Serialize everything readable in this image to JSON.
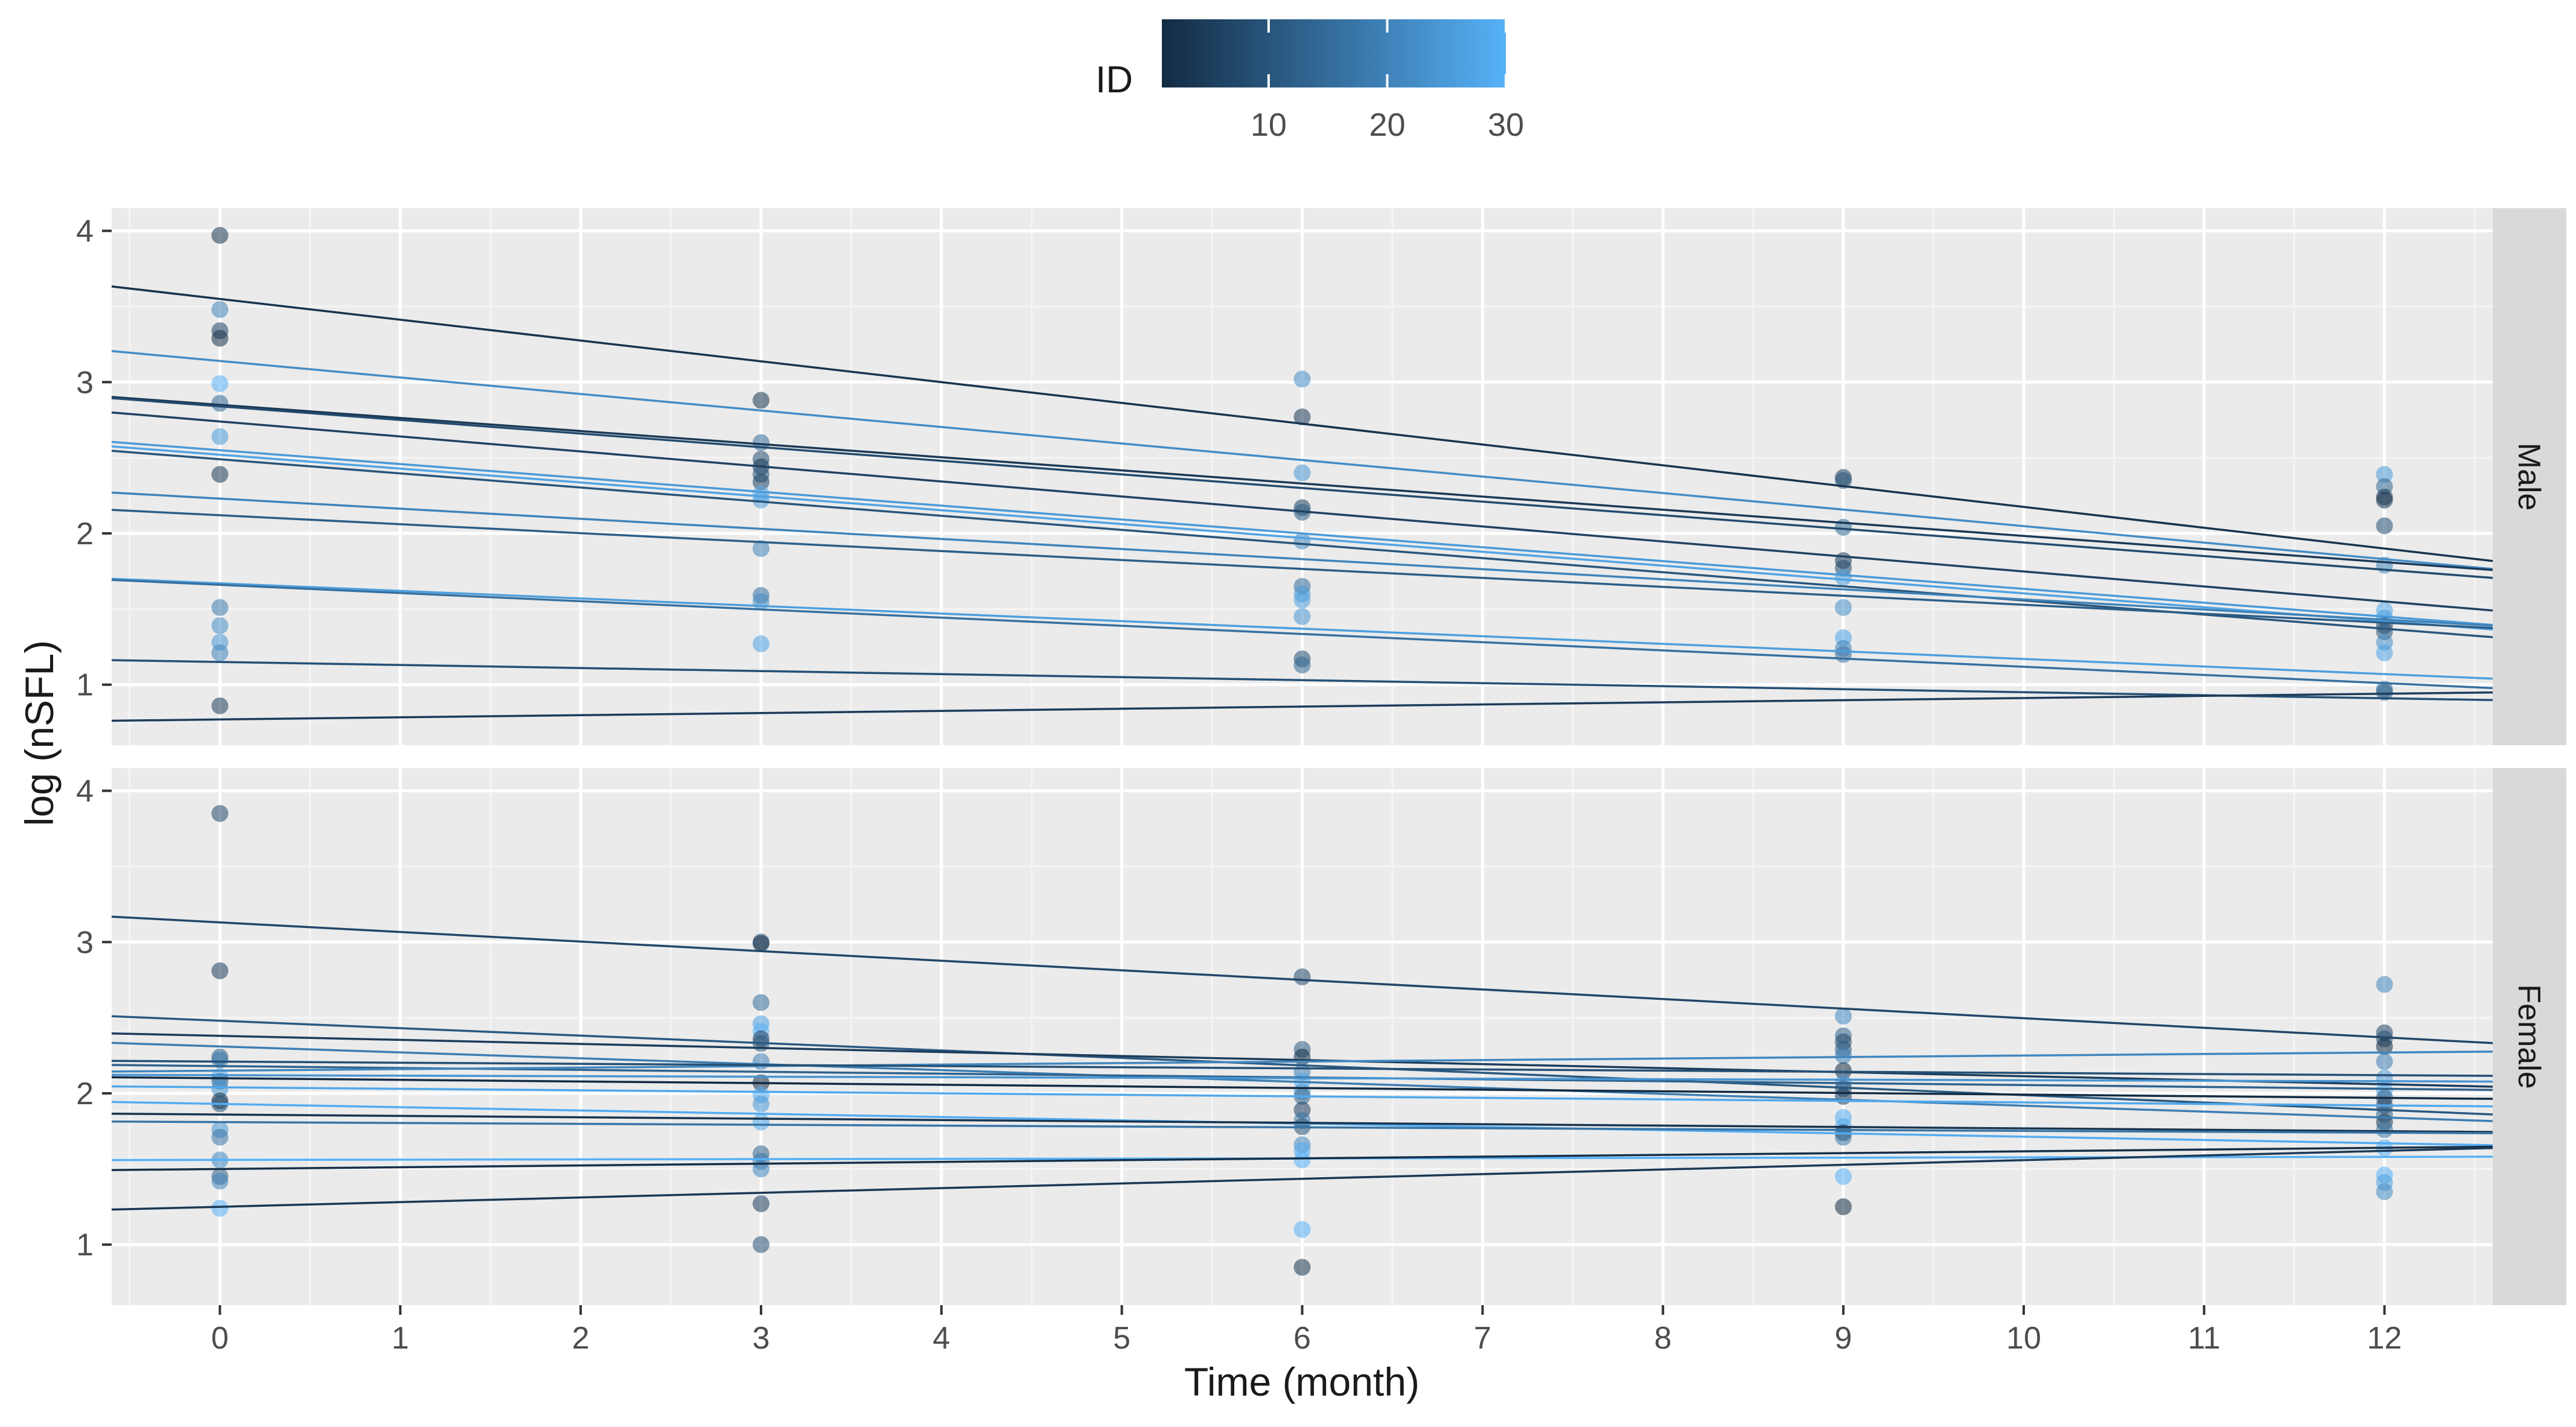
{
  "chart_data": {
    "type": "scatter",
    "facet_var": "sex",
    "facets": [
      "Male",
      "Female"
    ],
    "xlabel": "Time (month)",
    "ylabel": "log (nSFL)",
    "xlim": [
      -0.6,
      12.6
    ],
    "x_ticks": [
      0,
      1,
      2,
      3,
      4,
      5,
      6,
      7,
      8,
      9,
      10,
      11,
      12
    ],
    "legend": {
      "title": "ID",
      "position": "top",
      "range": [
        1,
        30
      ],
      "ticks": [
        10,
        20,
        30
      ],
      "color_low": "#132B43",
      "color_high": "#56B1F7"
    },
    "panels": [
      {
        "facet": "Male",
        "ylim": [
          0.6,
          4.15
        ],
        "y_ticks": [
          1,
          2,
          3,
          4
        ],
        "points": [
          {
            "x": 0,
            "y": 3.97,
            "id": 3
          },
          {
            "x": 0,
            "y": 3.48,
            "id": 20
          },
          {
            "x": 0,
            "y": 3.34,
            "id": 6
          },
          {
            "x": 0,
            "y": 3.29,
            "id": 2
          },
          {
            "x": 0,
            "y": 2.99,
            "id": 30
          },
          {
            "x": 0,
            "y": 2.86,
            "id": 14
          },
          {
            "x": 0,
            "y": 2.64,
            "id": 25
          },
          {
            "x": 0,
            "y": 2.39,
            "id": 4
          },
          {
            "x": 0,
            "y": 1.51,
            "id": 18
          },
          {
            "x": 0,
            "y": 1.39,
            "id": 22
          },
          {
            "x": 0,
            "y": 1.28,
            "id": 24
          },
          {
            "x": 0,
            "y": 1.21,
            "id": 20
          },
          {
            "x": 0,
            "y": 0.86,
            "id": 5
          },
          {
            "x": 3,
            "y": 2.88,
            "id": 3
          },
          {
            "x": 3,
            "y": 2.6,
            "id": 15
          },
          {
            "x": 3,
            "y": 2.49,
            "id": 8
          },
          {
            "x": 3,
            "y": 2.44,
            "id": 4
          },
          {
            "x": 3,
            "y": 2.39,
            "id": 10
          },
          {
            "x": 3,
            "y": 2.34,
            "id": 6
          },
          {
            "x": 3,
            "y": 2.26,
            "id": 28
          },
          {
            "x": 3,
            "y": 2.22,
            "id": 26
          },
          {
            "x": 3,
            "y": 1.9,
            "id": 20
          },
          {
            "x": 3,
            "y": 1.59,
            "id": 16
          },
          {
            "x": 3,
            "y": 1.55,
            "id": 22
          },
          {
            "x": 3,
            "y": 1.27,
            "id": 27
          },
          {
            "x": 6,
            "y": 3.02,
            "id": 22
          },
          {
            "x": 6,
            "y": 2.77,
            "id": 4
          },
          {
            "x": 6,
            "y": 2.4,
            "id": 24
          },
          {
            "x": 6,
            "y": 2.17,
            "id": 6
          },
          {
            "x": 6,
            "y": 2.14,
            "id": 12
          },
          {
            "x": 6,
            "y": 1.95,
            "id": 21
          },
          {
            "x": 6,
            "y": 1.65,
            "id": 15
          },
          {
            "x": 6,
            "y": 1.6,
            "id": 25
          },
          {
            "x": 6,
            "y": 1.56,
            "id": 26
          },
          {
            "x": 6,
            "y": 1.45,
            "id": 24
          },
          {
            "x": 6,
            "y": 1.17,
            "id": 9
          },
          {
            "x": 6,
            "y": 1.13,
            "id": 14
          },
          {
            "x": 9,
            "y": 2.37,
            "id": 6
          },
          {
            "x": 9,
            "y": 2.35,
            "id": 10
          },
          {
            "x": 9,
            "y": 2.04,
            "id": 14
          },
          {
            "x": 9,
            "y": 1.82,
            "id": 4
          },
          {
            "x": 9,
            "y": 1.77,
            "id": 8
          },
          {
            "x": 9,
            "y": 1.71,
            "id": 25
          },
          {
            "x": 9,
            "y": 1.51,
            "id": 22
          },
          {
            "x": 9,
            "y": 1.31,
            "id": 27
          },
          {
            "x": 9,
            "y": 1.24,
            "id": 20
          },
          {
            "x": 9,
            "y": 1.2,
            "id": 16
          },
          {
            "x": 12,
            "y": 2.39,
            "id": 25
          },
          {
            "x": 12,
            "y": 2.31,
            "id": 14
          },
          {
            "x": 12,
            "y": 2.24,
            "id": 4
          },
          {
            "x": 12,
            "y": 2.22,
            "id": 3
          },
          {
            "x": 12,
            "y": 2.05,
            "id": 9
          },
          {
            "x": 12,
            "y": 1.79,
            "id": 20
          },
          {
            "x": 12,
            "y": 1.49,
            "id": 28
          },
          {
            "x": 12,
            "y": 1.44,
            "id": 26
          },
          {
            "x": 12,
            "y": 1.39,
            "id": 6
          },
          {
            "x": 12,
            "y": 1.35,
            "id": 10
          },
          {
            "x": 12,
            "y": 1.28,
            "id": 22
          },
          {
            "x": 12,
            "y": 1.21,
            "id": 27
          },
          {
            "x": 12,
            "y": 0.97,
            "id": 16
          },
          {
            "x": 12,
            "y": 0.95,
            "id": 12
          }
        ],
        "fits": [
          {
            "id": 3,
            "y0": 3.55,
            "y12": 1.9
          },
          {
            "id": 22,
            "y0": 3.14,
            "y12": 1.83
          },
          {
            "id": 4,
            "y0": 2.85,
            "y12": 1.81
          },
          {
            "id": 8,
            "y0": 2.84,
            "y12": 1.76
          },
          {
            "id": 6,
            "y0": 2.74,
            "y12": 1.55
          },
          {
            "id": 25,
            "y0": 2.55,
            "y12": 1.45
          },
          {
            "id": 27,
            "y0": 2.52,
            "y12": 1.42
          },
          {
            "id": 10,
            "y0": 2.49,
            "y12": 1.37
          },
          {
            "id": 20,
            "y0": 2.23,
            "y12": 1.43
          },
          {
            "id": 12,
            "y0": 2.12,
            "y12": 1.41
          },
          {
            "id": 26,
            "y0": 1.67,
            "y12": 1.07
          },
          {
            "id": 16,
            "y0": 1.66,
            "y12": 1.01
          },
          {
            "id": 9,
            "y0": 1.15,
            "y12": 0.91
          },
          {
            "id": 5,
            "y0": 0.77,
            "y12": 0.94
          }
        ]
      },
      {
        "facet": "Female",
        "ylim": [
          0.6,
          4.15
        ],
        "y_ticks": [
          1,
          2,
          3,
          4
        ],
        "points": [
          {
            "x": 0,
            "y": 3.85,
            "id": 7
          },
          {
            "x": 0,
            "y": 2.81,
            "id": 5
          },
          {
            "x": 0,
            "y": 2.24,
            "id": 11
          },
          {
            "x": 0,
            "y": 2.22,
            "id": 19
          },
          {
            "x": 0,
            "y": 2.11,
            "id": 29
          },
          {
            "x": 0,
            "y": 2.08,
            "id": 13
          },
          {
            "x": 0,
            "y": 2.03,
            "id": 23
          },
          {
            "x": 0,
            "y": 1.95,
            "id": 1
          },
          {
            "x": 0,
            "y": 1.93,
            "id": 9
          },
          {
            "x": 0,
            "y": 1.76,
            "id": 24
          },
          {
            "x": 0,
            "y": 1.71,
            "id": 17
          },
          {
            "x": 0,
            "y": 1.56,
            "id": 21
          },
          {
            "x": 0,
            "y": 1.45,
            "id": 13
          },
          {
            "x": 0,
            "y": 1.42,
            "id": 20
          },
          {
            "x": 0,
            "y": 1.24,
            "id": 30
          },
          {
            "x": 3,
            "y": 3.0,
            "id": 7
          },
          {
            "x": 3,
            "y": 2.99,
            "id": 3
          },
          {
            "x": 3,
            "y": 2.6,
            "id": 15
          },
          {
            "x": 3,
            "y": 2.46,
            "id": 26
          },
          {
            "x": 3,
            "y": 2.41,
            "id": 30
          },
          {
            "x": 3,
            "y": 2.36,
            "id": 5
          },
          {
            "x": 3,
            "y": 2.33,
            "id": 11
          },
          {
            "x": 3,
            "y": 2.21,
            "id": 19
          },
          {
            "x": 3,
            "y": 2.07,
            "id": 1
          },
          {
            "x": 3,
            "y": 1.99,
            "id": 29
          },
          {
            "x": 3,
            "y": 1.93,
            "id": 24
          },
          {
            "x": 3,
            "y": 1.81,
            "id": 28
          },
          {
            "x": 3,
            "y": 1.6,
            "id": 13
          },
          {
            "x": 3,
            "y": 1.55,
            "id": 17
          },
          {
            "x": 3,
            "y": 1.5,
            "id": 21
          },
          {
            "x": 3,
            "y": 1.27,
            "id": 5
          },
          {
            "x": 3,
            "y": 1.0,
            "id": 9
          },
          {
            "x": 6,
            "y": 2.77,
            "id": 7
          },
          {
            "x": 6,
            "y": 2.29,
            "id": 11
          },
          {
            "x": 6,
            "y": 2.24,
            "id": 1
          },
          {
            "x": 6,
            "y": 2.14,
            "id": 19
          },
          {
            "x": 6,
            "y": 2.08,
            "id": 28
          },
          {
            "x": 6,
            "y": 2.01,
            "id": 24
          },
          {
            "x": 6,
            "y": 1.98,
            "id": 13
          },
          {
            "x": 6,
            "y": 1.89,
            "id": 5
          },
          {
            "x": 6,
            "y": 1.82,
            "id": 17
          },
          {
            "x": 6,
            "y": 1.78,
            "id": 9
          },
          {
            "x": 6,
            "y": 1.66,
            "id": 21
          },
          {
            "x": 6,
            "y": 1.62,
            "id": 29
          },
          {
            "x": 6,
            "y": 1.56,
            "id": 30
          },
          {
            "x": 6,
            "y": 1.1,
            "id": 30
          },
          {
            "x": 6,
            "y": 0.85,
            "id": 3
          },
          {
            "x": 9,
            "y": 2.51,
            "id": 21
          },
          {
            "x": 9,
            "y": 2.38,
            "id": 13
          },
          {
            "x": 9,
            "y": 2.34,
            "id": 7
          },
          {
            "x": 9,
            "y": 2.29,
            "id": 11
          },
          {
            "x": 9,
            "y": 2.25,
            "id": 19
          },
          {
            "x": 9,
            "y": 2.15,
            "id": 1
          },
          {
            "x": 9,
            "y": 2.07,
            "id": 24
          },
          {
            "x": 9,
            "y": 2.03,
            "id": 9
          },
          {
            "x": 9,
            "y": 1.98,
            "id": 5
          },
          {
            "x": 9,
            "y": 1.84,
            "id": 29
          },
          {
            "x": 9,
            "y": 1.78,
            "id": 28
          },
          {
            "x": 9,
            "y": 1.74,
            "id": 3
          },
          {
            "x": 9,
            "y": 1.71,
            "id": 17
          },
          {
            "x": 9,
            "y": 1.45,
            "id": 30
          },
          {
            "x": 9,
            "y": 1.25,
            "id": 1
          },
          {
            "x": 12,
            "y": 2.72,
            "id": 21
          },
          {
            "x": 12,
            "y": 2.4,
            "id": 7
          },
          {
            "x": 12,
            "y": 2.36,
            "id": 9
          },
          {
            "x": 12,
            "y": 2.31,
            "id": 1
          },
          {
            "x": 12,
            "y": 2.21,
            "id": 19
          },
          {
            "x": 12,
            "y": 2.1,
            "id": 24
          },
          {
            "x": 12,
            "y": 2.02,
            "id": 28
          },
          {
            "x": 12,
            "y": 1.97,
            "id": 11
          },
          {
            "x": 12,
            "y": 1.92,
            "id": 5
          },
          {
            "x": 12,
            "y": 1.86,
            "id": 13
          },
          {
            "x": 12,
            "y": 1.81,
            "id": 3
          },
          {
            "x": 12,
            "y": 1.76,
            "id": 17
          },
          {
            "x": 12,
            "y": 1.64,
            "id": 29
          },
          {
            "x": 12,
            "y": 1.46,
            "id": 30
          },
          {
            "x": 12,
            "y": 1.41,
            "id": 26
          },
          {
            "x": 12,
            "y": 1.35,
            "id": 22
          }
        ],
        "fits": [
          {
            "id": 7,
            "y0": 3.13,
            "y12": 2.37
          },
          {
            "id": 11,
            "y0": 2.48,
            "y12": 1.89
          },
          {
            "id": 5,
            "y0": 2.38,
            "y12": 2.06
          },
          {
            "id": 19,
            "y0": 2.31,
            "y12": 1.84
          },
          {
            "id": 13,
            "y0": 2.18,
            "y12": 2.03
          },
          {
            "id": 21,
            "y0": 2.15,
            "y12": 2.27
          },
          {
            "id": 1,
            "y0": 2.1,
            "y12": 1.97
          },
          {
            "id": 9,
            "y0": 2.21,
            "y12": 2.12
          },
          {
            "id": 24,
            "y0": 2.12,
            "y12": 2.08
          },
          {
            "id": 28,
            "y0": 2.04,
            "y12": 1.92
          },
          {
            "id": 29,
            "y0": 1.93,
            "y12": 1.67
          },
          {
            "id": 3,
            "y0": 1.86,
            "y12": 1.75
          },
          {
            "id": 17,
            "y0": 1.81,
            "y12": 1.74
          },
          {
            "id": 30,
            "y0": 1.56,
            "y12": 1.58
          },
          {
            "id": 2,
            "y0": 1.5,
            "y12": 1.64
          },
          {
            "id": 4,
            "y0": 1.25,
            "y12": 1.62
          }
        ]
      }
    ]
  }
}
